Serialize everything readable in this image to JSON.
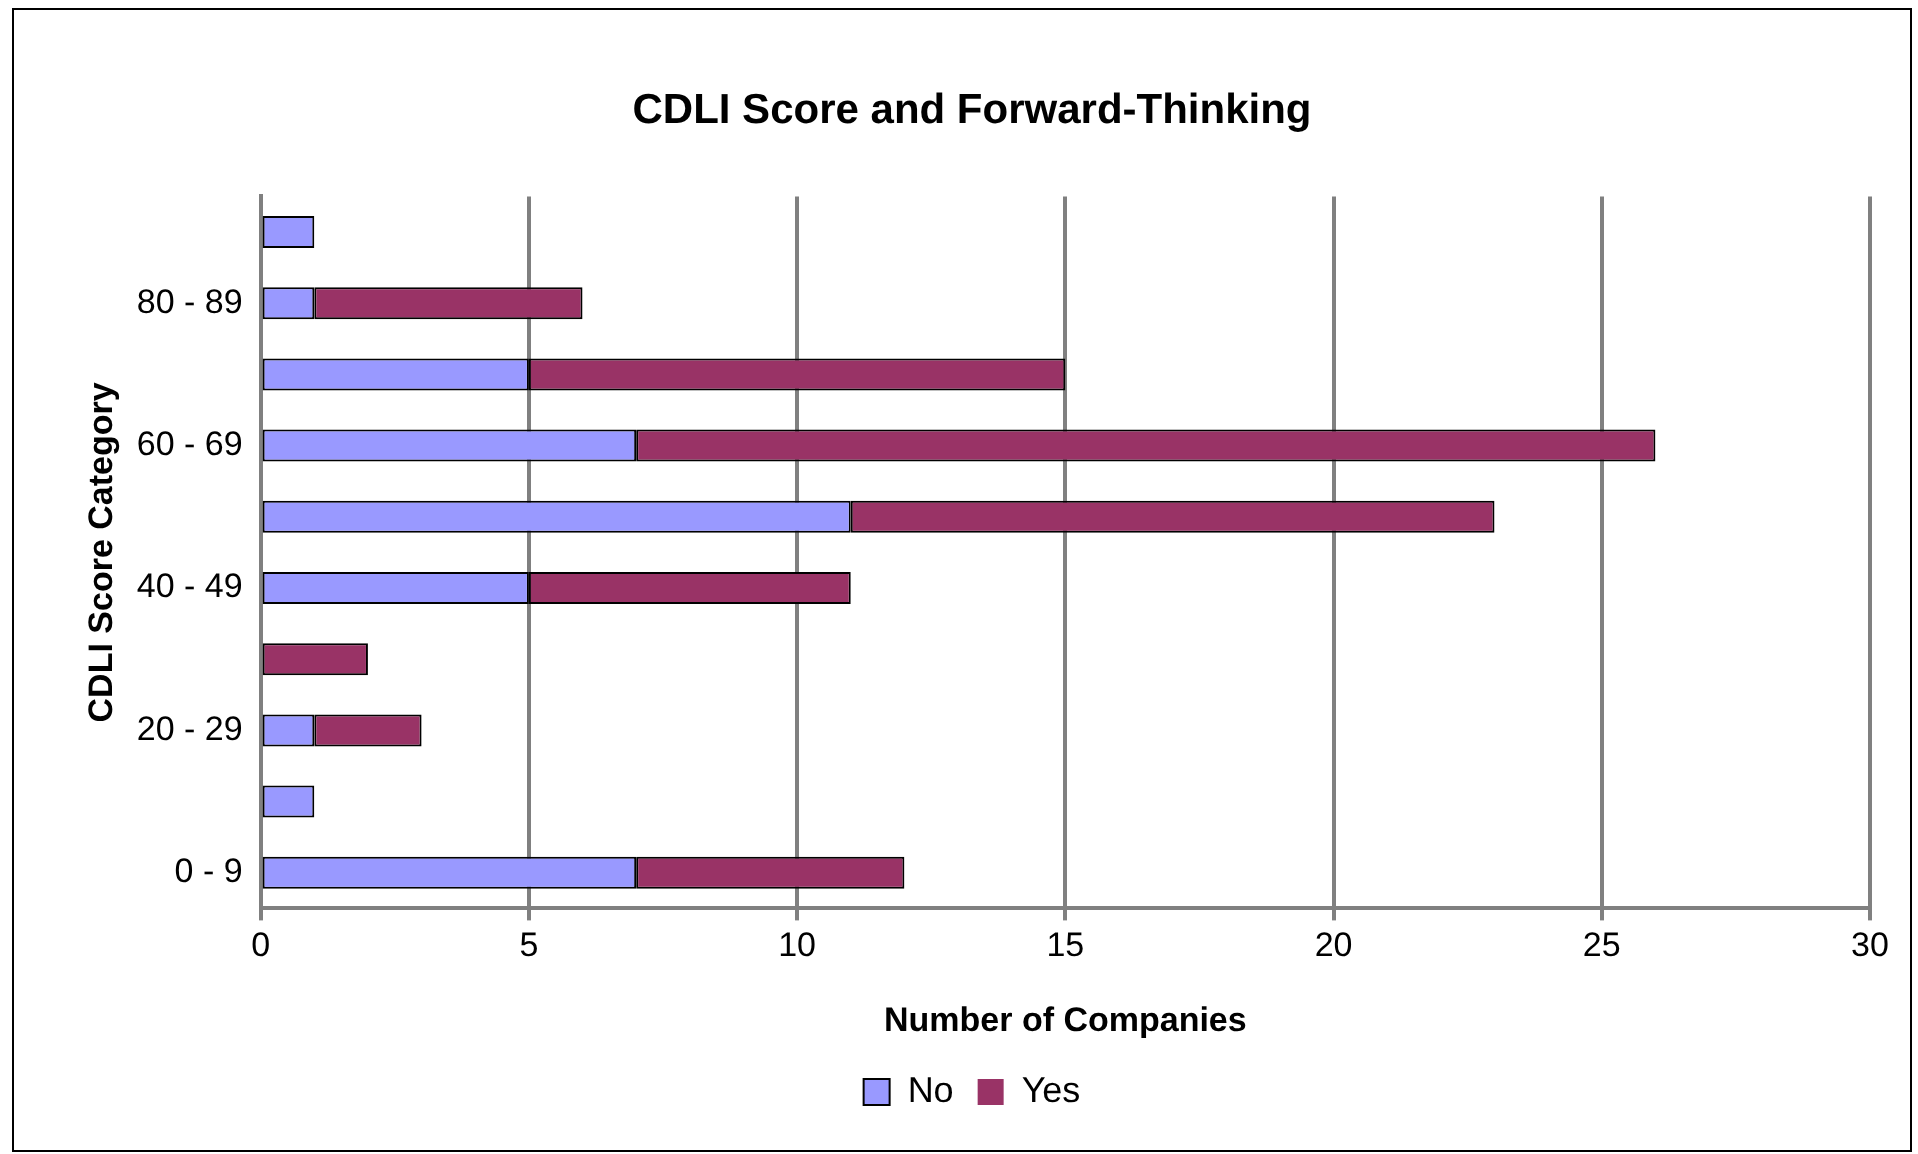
{
  "chart_data": {
    "type": "bar",
    "orientation": "horizontal",
    "stacked": true,
    "title": "CDLI Score and Forward-Thinking",
    "xlabel": "Number of Companies",
    "ylabel": "CDLI Score Category",
    "categories": [
      null,
      "80 - 89",
      null,
      "60 - 69",
      null,
      "40 - 49",
      null,
      "20 - 29",
      null,
      "0 - 9"
    ],
    "series": [
      {
        "name": "No",
        "color": "#9999ff",
        "values": [
          1,
          1,
          5,
          7,
          11,
          5,
          0,
          1,
          1,
          7
        ]
      },
      {
        "name": "Yes",
        "color": "#993366",
        "values": [
          0,
          5,
          10,
          19,
          12,
          6,
          2,
          2,
          0,
          5
        ]
      }
    ],
    "xlim": [
      0,
      30
    ],
    "xticks": [
      0,
      5,
      10,
      15,
      20,
      25,
      30
    ],
    "grid": "x",
    "legend": "bottom"
  }
}
